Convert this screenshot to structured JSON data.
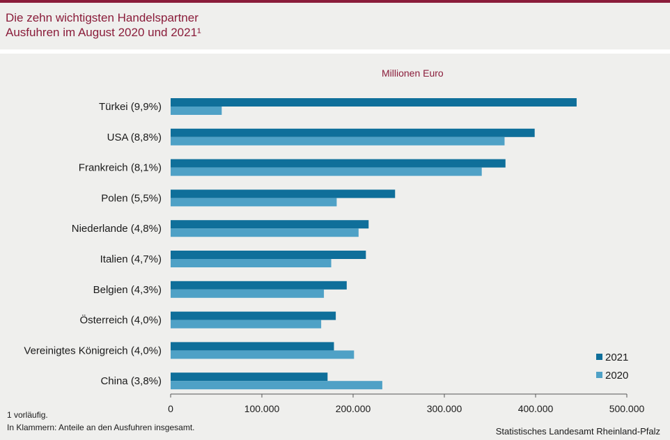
{
  "header": {
    "title_line1": "Die zehn wichtigsten Handelspartner",
    "title_line2": "Ausfuhren im August 2020 und 2021¹"
  },
  "colors": {
    "accent": "#8a1c3a",
    "series_2021": "#0f6f9a",
    "series_2020": "#4fa1c6"
  },
  "chart_data": {
    "type": "bar",
    "orientation": "horizontal",
    "unit_label": "Millionen  Euro",
    "categories": [
      "Türkei (9,9%)",
      "USA (8,8%)",
      "Frankreich (8,1%)",
      "Polen (5,5%)",
      "Niederlande (4,8%)",
      "Italien (4,7%)",
      "Belgien (4,3%)",
      "Österreich (4,0%)",
      "Vereinigtes Königreich (4,0%)",
      "China (3,8%)"
    ],
    "series": [
      {
        "name": "2021",
        "values": [
          445000,
          399000,
          367000,
          246000,
          217000,
          214000,
          193000,
          181000,
          179000,
          172000
        ]
      },
      {
        "name": "2020",
        "values": [
          56000,
          366000,
          341000,
          182000,
          206000,
          176000,
          168000,
          165000,
          201000,
          232000
        ]
      }
    ],
    "xlim": [
      0,
      500000
    ],
    "x_ticks": [
      {
        "value": 0,
        "label": "0"
      },
      {
        "value": 100000,
        "label": "100.000"
      },
      {
        "value": 200000,
        "label": "200.000"
      },
      {
        "value": 300000,
        "label": "300.000"
      },
      {
        "value": 400000,
        "label": "400.000"
      },
      {
        "value": 500000,
        "label": "500.000"
      }
    ],
    "legend_position": "bottom-right",
    "grid": false
  },
  "footer": {
    "footnote1": "1 vorläufig.",
    "footnote2": "In Klammern: Anteile an den Ausfuhren insgesamt.",
    "source": "Statistisches Landesamt Rheinland-Pfalz"
  }
}
